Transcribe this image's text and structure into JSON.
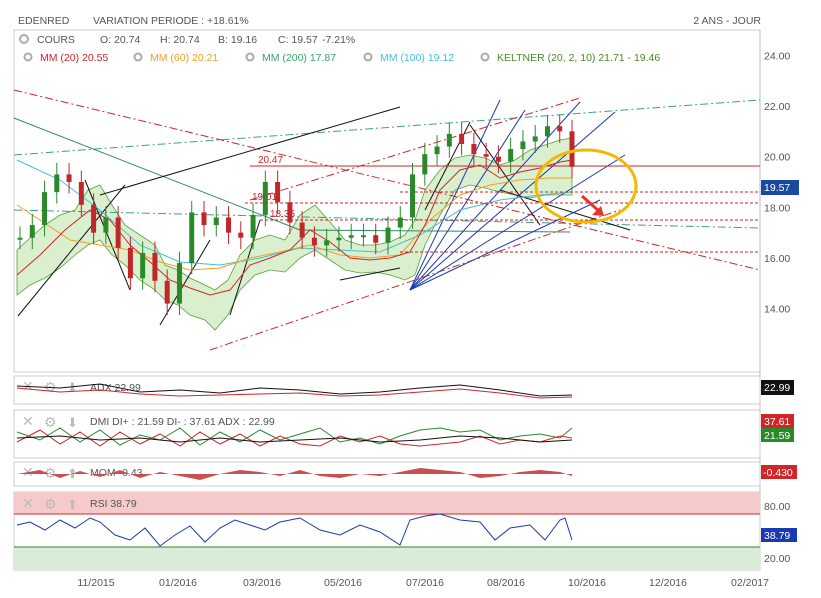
{
  "header": {
    "symbol": "EDENRED",
    "variation": "VARIATION PERIODE : +18.61%",
    "period": "2 ANS - JOUR"
  },
  "quote": {
    "label": "COURS",
    "open": "O: 20.74",
    "high": "H: 20.74",
    "low": "B: 19.16",
    "close_label": "C: 19.57",
    "change": "-7.21%"
  },
  "indicators": [
    {
      "text": "MM (20) 20.55",
      "color": "#d0262a"
    },
    {
      "text": "MM (60) 20.21",
      "color": "#f0a020"
    },
    {
      "text": "MM (200) 17.87",
      "color": "#3aa66a"
    },
    {
      "text": "MM (100) 19.12",
      "color": "#42c0d8"
    },
    {
      "text": "KELTNER (20, 2, 10)  21.71 - 19.46",
      "color": "#4a8a2a"
    }
  ],
  "levels": [
    {
      "label": "20.47",
      "value": 20.47
    },
    {
      "label": "19.01",
      "value": 19.01
    },
    {
      "label": "18.35",
      "value": 18.35
    }
  ],
  "last_price": "19.57",
  "colors": {
    "red": "#d0262a",
    "green": "#2a8a2a",
    "blue": "#1a3ab0",
    "keltner_fill": "#d4ecc4",
    "orange_circle": "#f5b800",
    "rsi_zone": "#f6caca",
    "rsi_low_zone": "#d8ecd8"
  },
  "chart_data": {
    "type": "line",
    "title": "EDENRED",
    "x_ticks": [
      "11/2015",
      "01/2016",
      "03/2016",
      "05/2016",
      "07/2016",
      "08/2016",
      "10/2016",
      "12/2016",
      "02/2017"
    ],
    "y_ticks": [
      14,
      16,
      18,
      20,
      22,
      24
    ],
    "ylim": [
      11.5,
      25
    ],
    "series": [
      {
        "name": "COURS",
        "values": [
          16.8,
          17.3,
          18.6,
          19.3,
          19.0,
          18.1,
          17.0,
          17.6,
          16.4,
          15.2,
          16.2,
          15.1,
          14.2,
          15.8,
          17.8,
          17.3,
          17.6,
          17.0,
          16.8,
          17.7,
          19.0,
          18.2,
          17.4,
          16.8,
          16.5,
          16.7,
          16.8,
          16.9,
          16.9,
          16.6,
          17.2,
          17.6,
          19.3,
          20.1,
          20.4,
          20.9,
          20.5,
          20.1,
          20.0,
          19.8,
          20.3,
          20.6,
          20.8,
          21.2,
          21.0,
          19.6
        ]
      }
    ],
    "panels": [
      {
        "name": "ADX",
        "label": "ADX 22.99",
        "value": "22.99"
      },
      {
        "name": "DMI",
        "label": "DMI DI+ : 21.59 DI- : 37.61 ADX : 22.99",
        "values": [
          "37.61",
          "21.59"
        ]
      },
      {
        "name": "MOM",
        "label": "MOM -0.43",
        "value": "-0.430"
      },
      {
        "name": "RSI",
        "label": "RSI 38.79",
        "value": "38.79",
        "ticks": [
          "80.00",
          "20.00"
        ]
      }
    ]
  }
}
